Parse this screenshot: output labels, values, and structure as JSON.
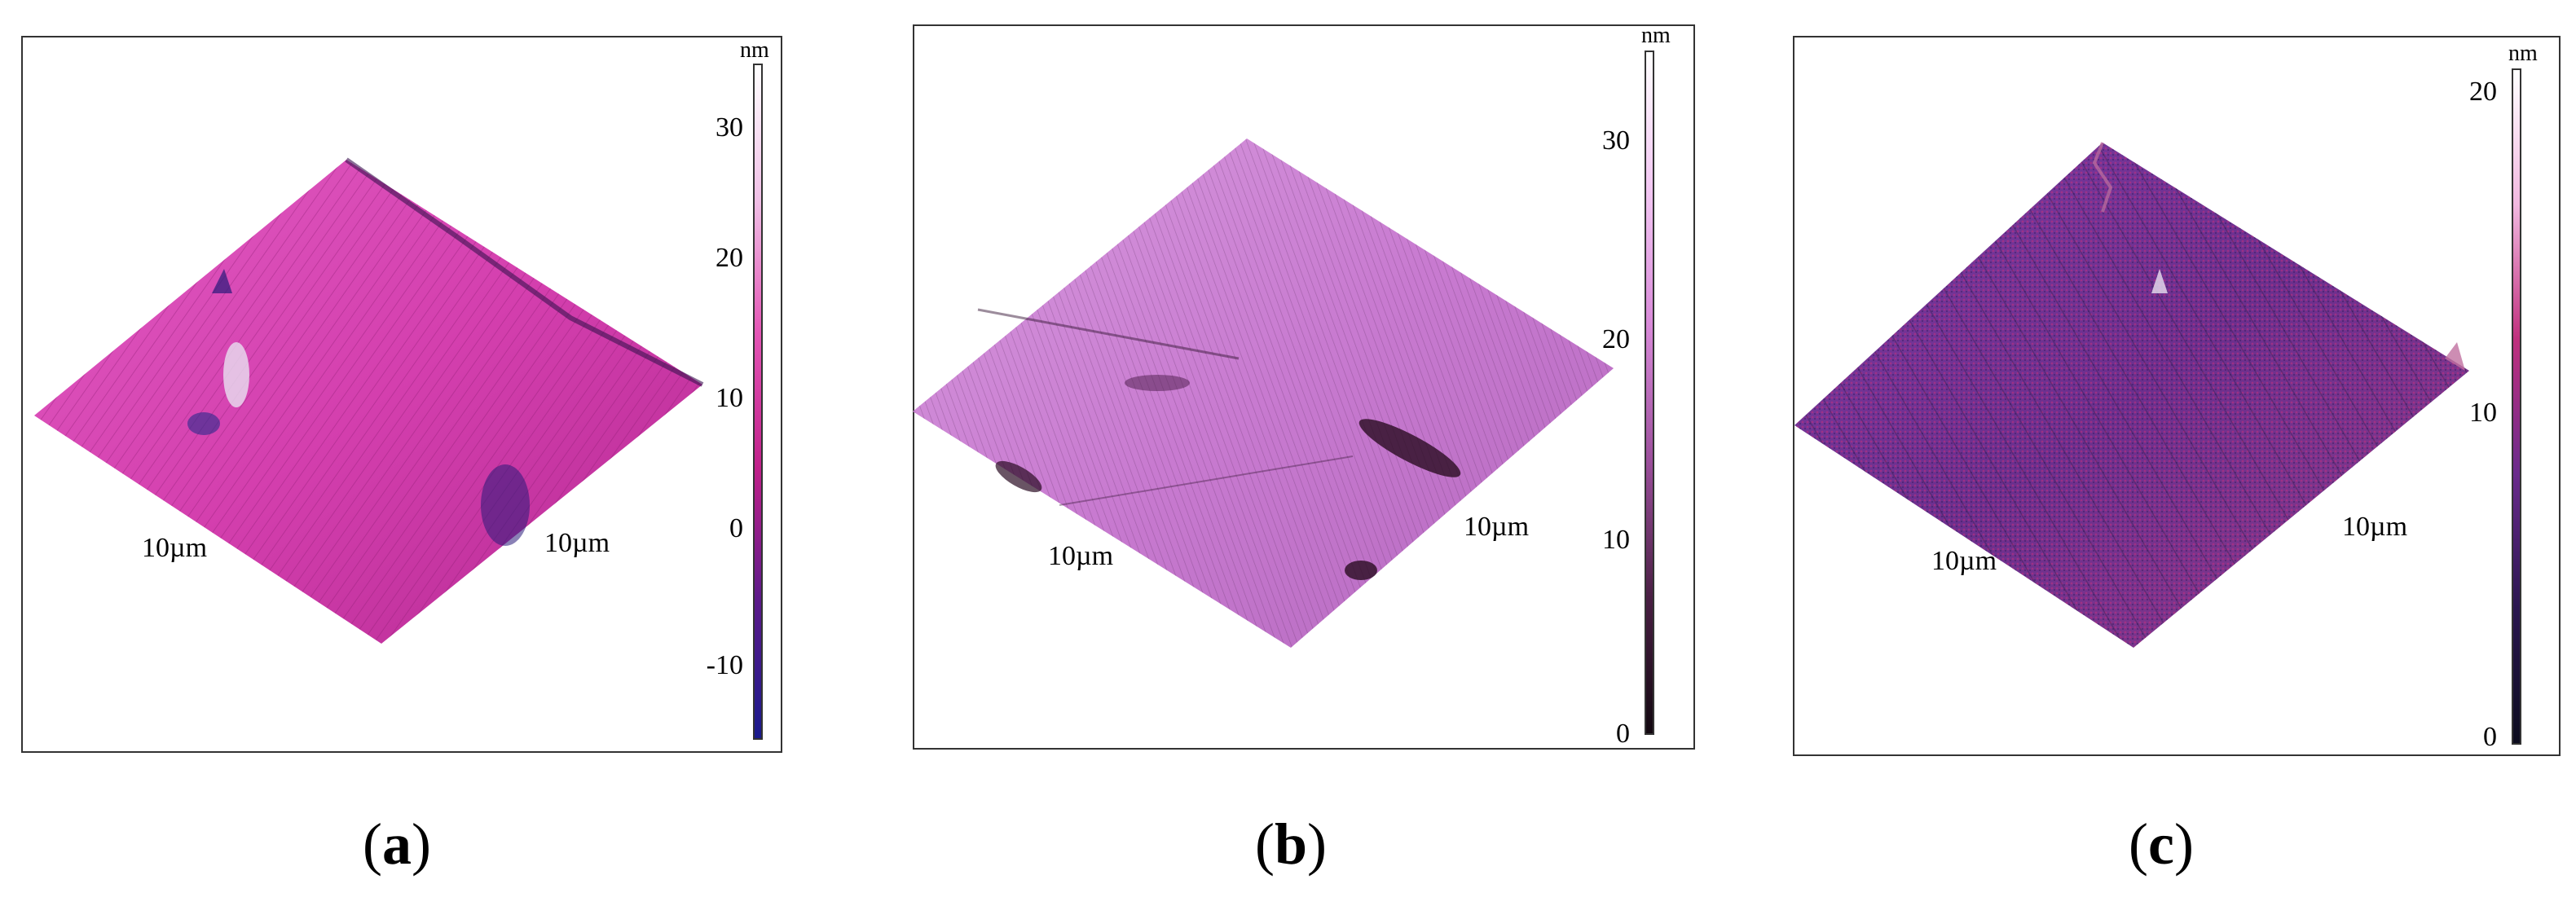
{
  "panels": [
    {
      "caption_letter": "a",
      "unit": "nm",
      "axis_label_left": "10µm",
      "axis_label_right": "10µm",
      "scale_ticks": [
        "30",
        "20",
        "10",
        "0",
        "-10"
      ],
      "colorbar_colors": [
        "#ffffff",
        "#f0c0e6",
        "#e455b5",
        "#c0208a",
        "#5a1a8a",
        "#1a1a8c"
      ],
      "surface_color": "#d63fb0"
    },
    {
      "caption_letter": "b",
      "unit": "nm",
      "axis_label_left": "10µm",
      "axis_label_right": "10µm",
      "scale_ticks": [
        "30",
        "20",
        "10",
        "0"
      ],
      "colorbar_colors": [
        "#ffffff",
        "#f3c8f3",
        "#d98ad9",
        "#9c4f9c",
        "#4a1f44",
        "#120810"
      ],
      "surface_color": "#c77ad0"
    },
    {
      "caption_letter": "c",
      "unit": "nm",
      "axis_label_left": "10µm",
      "axis_label_right": "10µm",
      "scale_ticks": [
        "20",
        "10",
        "0"
      ],
      "colorbar_colors": [
        "#ffffff",
        "#f2b8e0",
        "#c0307e",
        "#6a2a8c",
        "#2a1650",
        "#0c0c1e"
      ],
      "surface_color": "#6b2f8e"
    }
  ]
}
